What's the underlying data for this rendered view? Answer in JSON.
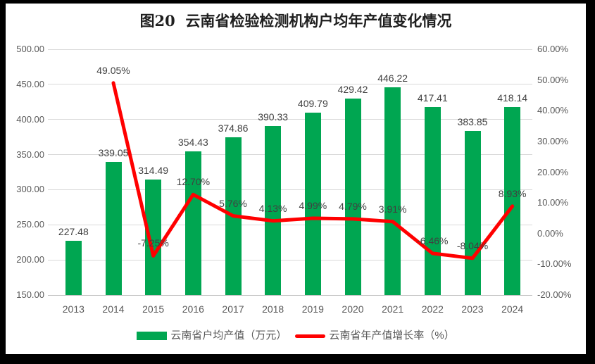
{
  "title": "图20  云南省检验检测机构户均年产值变化情况",
  "colors": {
    "frame_background": "#000000",
    "page_background": "#FFFFFF",
    "bar_green": "#00A651",
    "line_red": "#FF0000",
    "gridline": "#D9D9D9",
    "axis_line": "#BFBFBF",
    "tick_text": "#595959",
    "data_label_text": "#404040",
    "title_text": "#1F1F1F"
  },
  "chart_data": {
    "type": "combo-bar-line",
    "title": "图20  云南省检验检测机构户均年产值变化情况",
    "categories": [
      "2013",
      "2014",
      "2015",
      "2016",
      "2017",
      "2018",
      "2019",
      "2020",
      "2021",
      "2022",
      "2023",
      "2024"
    ],
    "series": [
      {
        "name": "云南省户均产值（万元）",
        "type": "bar",
        "axis": "left",
        "color": "#00A651",
        "values": [
          227.48,
          339.05,
          314.49,
          354.43,
          374.86,
          390.33,
          409.79,
          429.42,
          446.22,
          417.41,
          383.85,
          418.14
        ],
        "labels": [
          "227.48",
          "339.05",
          "314.49",
          "354.43",
          "374.86",
          "390.33",
          "409.79",
          "429.42",
          "446.22",
          "417.41",
          "383.85",
          "418.14"
        ]
      },
      {
        "name": "云南省年产值增长率（%）",
        "type": "line",
        "axis": "right",
        "color": "#FF0000",
        "values": [
          null,
          49.05,
          -7.25,
          12.7,
          5.76,
          4.13,
          4.99,
          4.79,
          3.91,
          -6.46,
          -8.04,
          8.93
        ],
        "labels": [
          null,
          "49.05%",
          "-7.25%",
          "12.70%",
          "5.76%",
          "4.13%",
          "4.99%",
          "4.79%",
          "3.91%",
          "-6.46%",
          "-8.04%",
          "8.93%"
        ]
      }
    ],
    "left_axis": {
      "min": 150,
      "max": 500,
      "step": 50,
      "ticks": [
        "500.00",
        "450.00",
        "400.00",
        "350.00",
        "300.00",
        "250.00",
        "200.00",
        "150.00"
      ]
    },
    "right_axis": {
      "min": -20,
      "max": 60,
      "step": 10,
      "ticks": [
        "60.00%",
        "50.00%",
        "40.00%",
        "30.00%",
        "20.00%",
        "10.00%",
        "0.00%",
        "-10.00%",
        "-20.00%"
      ]
    },
    "grid": true,
    "legend_position": "bottom"
  }
}
